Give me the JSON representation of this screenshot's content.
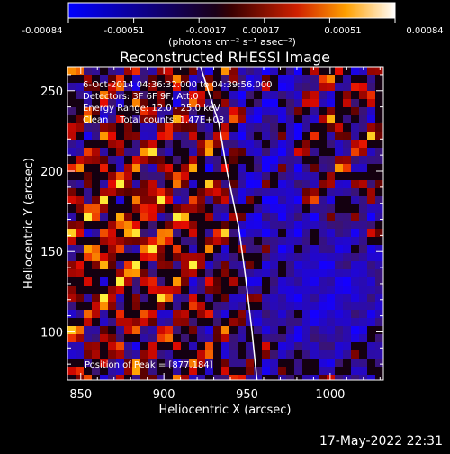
{
  "colorbar": {
    "tick_labels": [
      "-0.00084",
      "-0.00051",
      "-0.00017",
      "0.00017",
      "0.00051",
      "0.00084"
    ],
    "units": "(photons cm⁻² s⁻¹ asec⁻²)",
    "range": [
      -0.00084,
      0.00084
    ]
  },
  "chart_data": {
    "type": "heatmap",
    "title": "Reconstructed RHESSI Image",
    "xlabel": "Heliocentric X (arcsec)",
    "ylabel": "Heliocentric Y (arcsec)",
    "xlim": [
      842,
      1032
    ],
    "ylim": [
      70,
      265
    ],
    "x_ticks": [
      850,
      900,
      950,
      1000
    ],
    "y_ticks": [
      100,
      150,
      200,
      250
    ],
    "annotations": [
      "6-Oct-2014 04:36:32.000 to 04:39:56.000",
      "Detectors: 3F 6F 9F, Att:0",
      "Energy Range: 12.0 - 25.0 keV",
      "Clean    Total counts: 1.47E+03"
    ],
    "peak_label": "Position of Peak = [877,184]",
    "limb_curve": [
      [
        922,
        265
      ],
      [
        933,
        230
      ],
      [
        938,
        200
      ],
      [
        945,
        165
      ],
      [
        949,
        135
      ],
      [
        953,
        100
      ],
      [
        956,
        70
      ]
    ]
  },
  "timestamp": "17-May-2022 22:31",
  "colors": {
    "background": "#000000",
    "text": "#ffffff"
  }
}
